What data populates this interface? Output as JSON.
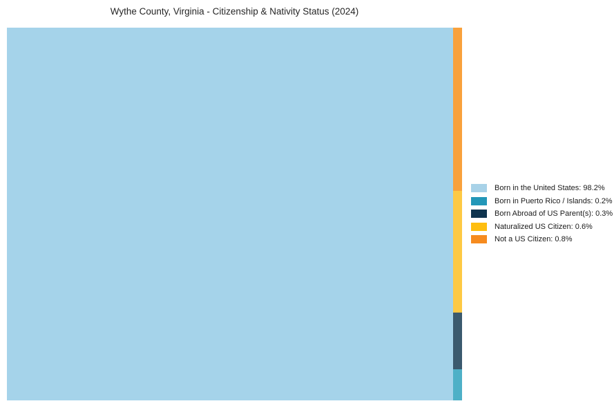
{
  "chart_data": {
    "type": "treemap",
    "title": "Wythe County, Virginia - Citizenship & Nativity Status (2024)",
    "legend_position": "right",
    "background_color": "#ffffff",
    "items": [
      {
        "label": "Born in the United States",
        "value_pct": 98.2,
        "legend_label": "Born in the United States: 98.2%",
        "legend_color": "#a8d2e8",
        "fill": "#a5d3ea"
      },
      {
        "label": "Born in Puerto Rico / Islands",
        "value_pct": 0.2,
        "legend_label": "Born in Puerto Rico / Islands: 0.2%",
        "legend_color": "#2397b8",
        "fill": "#4eb0c7"
      },
      {
        "label": "Born Abroad of US Parent(s)",
        "value_pct": 0.3,
        "legend_label": "Born Abroad of US Parent(s): 0.3%",
        "legend_color": "#0f344f",
        "fill": "#3b5a6e"
      },
      {
        "label": "Naturalized US Citizen",
        "value_pct": 0.6,
        "legend_label": "Naturalized US Citizen: 0.6%",
        "legend_color": "#febe10",
        "fill": "#fec944"
      },
      {
        "label": "Not a US Citizen",
        "value_pct": 0.8,
        "legend_label": "Not a US Citizen: 0.8%",
        "legend_color": "#f68b1f",
        "fill": "#f9a13c"
      }
    ]
  }
}
